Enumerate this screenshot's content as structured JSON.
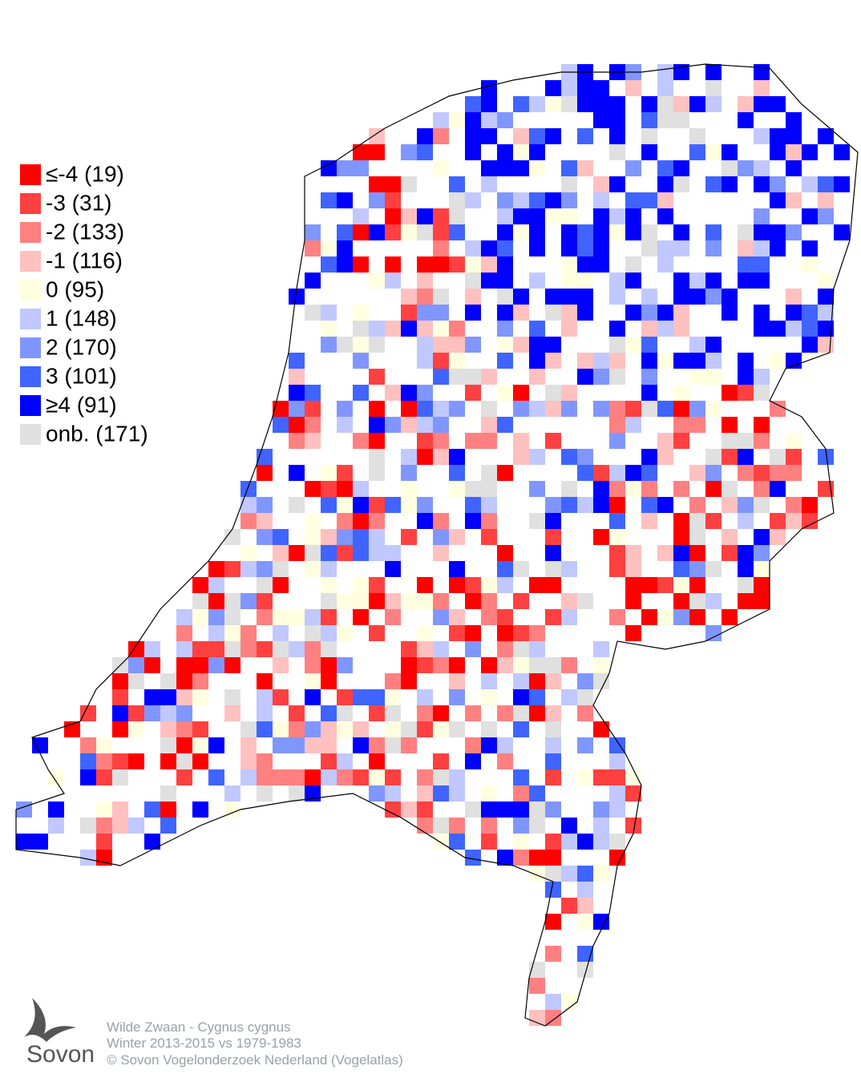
{
  "legend": [
    {
      "label": "≤-4 (19)",
      "color": "#ff0000"
    },
    {
      "label": "-3 (31)",
      "color": "#ff4040"
    },
    {
      "label": "-2 (133)",
      "color": "#ff8080"
    },
    {
      "label": "-1 (116)",
      "color": "#ffc0c0"
    },
    {
      "label": " 0 (95)",
      "color": "#ffffe0"
    },
    {
      "label": " 1 (148)",
      "color": "#c0c8ff"
    },
    {
      "label": " 2 (170)",
      "color": "#8096ff"
    },
    {
      "label": " 3 (101)",
      "color": "#4064ff"
    },
    {
      "label": "≥4 (91)",
      "color": "#0000ff"
    },
    {
      "label": "onb. (171)",
      "color": "#e0e0e0"
    }
  ],
  "footer": {
    "species": "Wilde Zwaan - Cygnus cygnus",
    "period": "Winter 2013-2015 vs 1979-1983",
    "copyright": "© Sovon Vogelonderzoek Nederland (Vogelatlas)"
  },
  "logo": {
    "text": "Sovon"
  }
}
